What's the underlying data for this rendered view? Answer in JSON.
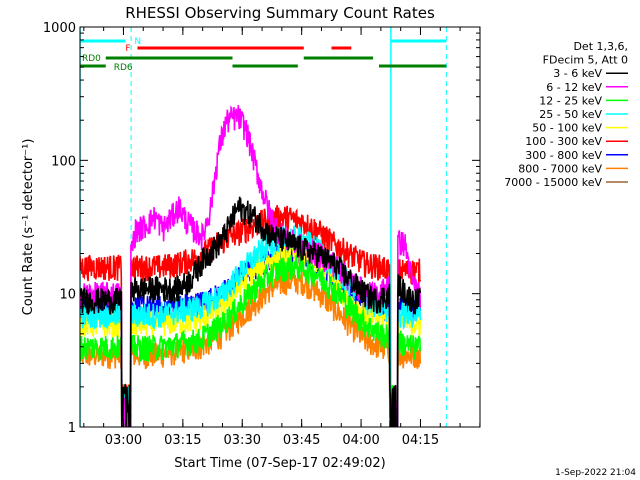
{
  "chart_data": {
    "type": "line",
    "title": "RHESSI Observing Summary Count Rates",
    "ylabel": "Count Rate (s⁻¹ detector⁻¹)",
    "xlabel": "Start Time (07-Sep-17 02:49:02)",
    "y_scale": "log",
    "ylim": [
      1,
      1000
    ],
    "xlim_minutes_after_start": [
      0,
      101
    ],
    "x_ticks": [
      {
        "label": "03:00",
        "minutes": 10.97
      },
      {
        "label": "03:15",
        "minutes": 25.97
      },
      {
        "label": "03:30",
        "minutes": 40.97
      },
      {
        "label": "03:45",
        "minutes": 55.97
      },
      {
        "label": "04:00",
        "minutes": 70.97
      },
      {
        "label": "04:15",
        "minutes": 85.97
      }
    ],
    "y_ticks": [
      {
        "label": "1",
        "value": 1
      },
      {
        "label": "10",
        "value": 10
      },
      {
        "label": "100",
        "value": 100
      },
      {
        "label": "1000",
        "value": 1000
      }
    ],
    "legend": {
      "header": [
        "Det 1,3,6,",
        "FDecim 5, Att 0"
      ],
      "placement": "right"
    },
    "series": [
      {
        "name": "3 - 6 keV",
        "color": "#000000",
        "x": [
          0,
          11,
          14,
          20,
          25,
          28,
          31,
          36,
          40,
          44,
          48,
          52,
          56,
          60,
          64,
          68,
          72,
          75,
          78,
          80,
          84,
          86
        ],
        "y": [
          9,
          9,
          11,
          11,
          11,
          13,
          18,
          26,
          45,
          38,
          28,
          25,
          22,
          20,
          17,
          13,
          10,
          9,
          10,
          12,
          9,
          9
        ]
      },
      {
        "name": "6 - 12 keV",
        "color": "#ff00ff",
        "x": [
          0,
          11,
          14,
          16,
          19,
          21,
          25,
          27,
          29,
          31,
          33,
          35,
          37,
          40,
          42,
          44,
          46,
          48,
          50,
          52,
          56,
          60,
          64,
          68,
          71,
          73,
          75,
          77,
          79,
          80,
          82,
          84,
          86
        ],
        "y": [
          10,
          10,
          30,
          32,
          38,
          31,
          45,
          35,
          30,
          27,
          45,
          120,
          200,
          215,
          170,
          100,
          60,
          40,
          30,
          26,
          23,
          20,
          17,
          13,
          11,
          10,
          10,
          11,
          12,
          25,
          24,
          12,
          10
        ]
      },
      {
        "name": "12 - 25 keV",
        "color": "#00ff00",
        "x": [
          0,
          11,
          20,
          30,
          36,
          40,
          44,
          48,
          52,
          56,
          60,
          64,
          68,
          72,
          76,
          80,
          84,
          86
        ],
        "y": [
          4,
          4,
          4,
          4.5,
          6,
          8,
          11,
          14,
          16,
          16,
          14,
          11,
          8,
          6,
          5,
          4.5,
          4,
          4
        ]
      },
      {
        "name": "25 - 50 keV",
        "color": "#00ffff",
        "x": [
          0,
          11,
          20,
          30,
          36,
          40,
          44,
          48,
          52,
          56,
          60,
          64,
          68,
          72,
          76,
          80,
          84,
          86
        ],
        "y": [
          7,
          7,
          7,
          8,
          10,
          14,
          19,
          24,
          27,
          26,
          22,
          16,
          12,
          9,
          8,
          7,
          7,
          7
        ]
      },
      {
        "name": "50 - 100 keV",
        "color": "#ffff00",
        "x": [
          0,
          11,
          20,
          30,
          36,
          40,
          44,
          48,
          52,
          56,
          60,
          64,
          68,
          72,
          76,
          80,
          84,
          86
        ],
        "y": [
          6,
          6,
          6,
          6.5,
          8,
          11,
          15,
          18,
          20,
          20,
          17,
          13,
          9,
          7,
          6.5,
          6,
          6,
          6
        ]
      },
      {
        "name": "100 - 300 keV",
        "color": "#ff0000",
        "x": [
          0,
          11,
          20,
          25,
          30,
          34,
          38,
          42,
          46,
          50,
          52,
          56,
          60,
          64,
          68,
          72,
          76,
          80,
          84,
          86
        ],
        "y": [
          16,
          16,
          16,
          17,
          19,
          23,
          27,
          31,
          35,
          38,
          38,
          35,
          30,
          24,
          20,
          17,
          16,
          15,
          15,
          15
        ]
      },
      {
        "name": "300 - 800 keV",
        "color": "#0000ff",
        "x": [
          0,
          11,
          20,
          30,
          36,
          40,
          44,
          48,
          52,
          56,
          60,
          64,
          68,
          72,
          76,
          80,
          84,
          86
        ],
        "y": [
          8,
          8,
          8,
          8.5,
          10,
          13,
          16,
          19,
          21,
          21,
          18,
          14,
          11,
          9,
          8,
          8,
          8,
          8
        ]
      },
      {
        "name": "800 - 7000 keV",
        "color": "#ff8000",
        "x": [
          0,
          11,
          20,
          30,
          36,
          40,
          44,
          48,
          52,
          56,
          60,
          64,
          68,
          72,
          76,
          80,
          84,
          86
        ],
        "y": [
          3.5,
          3.5,
          3.5,
          4,
          5,
          6.5,
          8.5,
          11,
          12.5,
          12.5,
          10.5,
          8,
          6,
          4.5,
          4,
          3.5,
          3.5,
          3.5
        ]
      },
      {
        "name": "7000 - 15000 keV",
        "color": "#996633",
        "x": [],
        "y": []
      }
    ],
    "attenuator_bars": [
      {
        "label": "N",
        "color": "#00ffff",
        "segments": [
          [
            0,
            11.5
          ],
          [
            78.5,
            92.5
          ]
        ]
      },
      {
        "label": "F",
        "color": "#ff0000",
        "segments": [
          [
            14.5,
            56.5
          ],
          [
            63.5,
            68.5
          ]
        ]
      },
      {
        "label": "RD0",
        "color": "#008000",
        "segments": [
          [
            6.5,
            38.5
          ],
          [
            56.5,
            74
          ]
        ]
      },
      {
        "label": "RD6",
        "color": "#008000",
        "segments": [
          [
            0,
            6.5
          ],
          [
            38.5,
            55
          ],
          [
            75.5,
            92.5
          ]
        ]
      }
    ],
    "dashed_markers_minutes": [
      12.9,
      92.5
    ],
    "solid_markers_minutes": [
      0,
      78.5
    ]
  },
  "footer_date": "1-Sep-2022 21:04"
}
